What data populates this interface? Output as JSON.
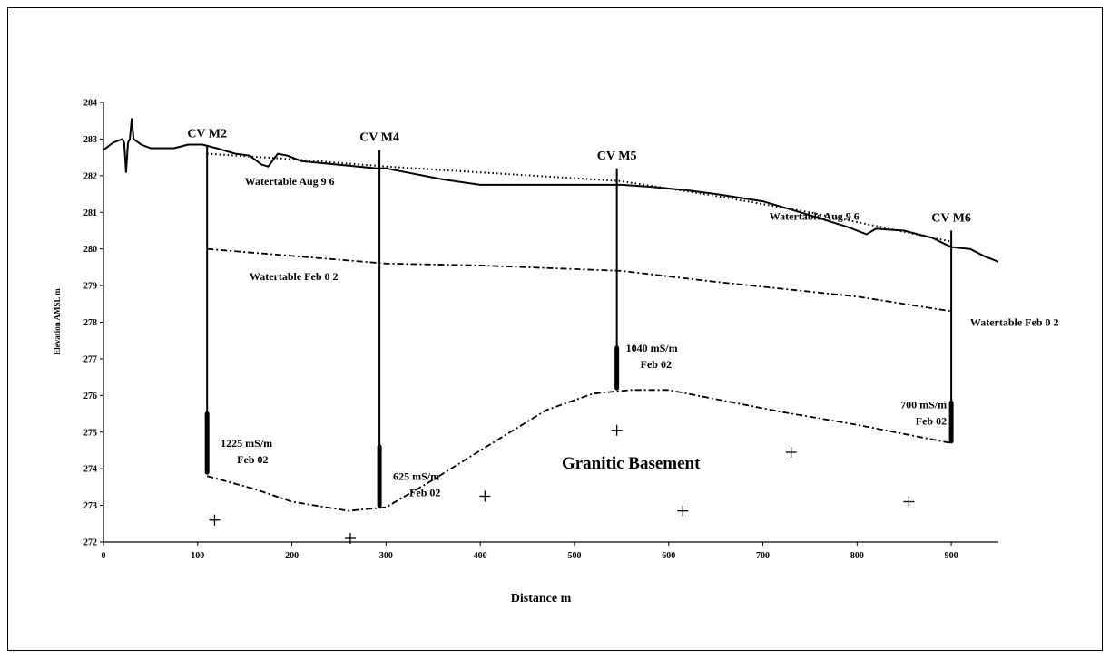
{
  "chart_data": {
    "type": "line",
    "title": "",
    "xlabel": "Distance m",
    "ylabel": "Elevation AMSL m",
    "xlim": [
      0,
      950
    ],
    "ylim": [
      272,
      284
    ],
    "x_ticks": [
      "0",
      "100",
      "200",
      "300",
      "400",
      "500",
      "600",
      "700",
      "800",
      "900"
    ],
    "y_ticks": [
      "272",
      "273",
      "274",
      "275",
      "276",
      "277",
      "278",
      "279",
      "280",
      "281",
      "282",
      "283",
      "284"
    ],
    "series": [
      {
        "name": "",
        "style": "solid",
        "points": [
          [
            0,
            282.7
          ],
          [
            10,
            282.9
          ],
          [
            20,
            283.0
          ],
          [
            22,
            282.9
          ],
          [
            24,
            282.1
          ],
          [
            26,
            282.9
          ],
          [
            28,
            283.0
          ],
          [
            30,
            283.55
          ],
          [
            32,
            283.0
          ],
          [
            40,
            282.85
          ],
          [
            50,
            282.75
          ],
          [
            75,
            282.75
          ],
          [
            90,
            282.85
          ],
          [
            105,
            282.85
          ],
          [
            120,
            282.75
          ],
          [
            140,
            282.6
          ],
          [
            155,
            282.55
          ],
          [
            168,
            282.3
          ],
          [
            175,
            282.25
          ],
          [
            185,
            282.6
          ],
          [
            195,
            282.55
          ],
          [
            210,
            282.4
          ],
          [
            250,
            282.3
          ],
          [
            290,
            282.2
          ],
          [
            300,
            282.2
          ],
          [
            320,
            282.1
          ],
          [
            360,
            281.9
          ],
          [
            400,
            281.75
          ],
          [
            550,
            281.75
          ],
          [
            580,
            281.7
          ],
          [
            620,
            281.6
          ],
          [
            650,
            281.5
          ],
          [
            700,
            281.3
          ],
          [
            740,
            281.0
          ],
          [
            790,
            280.6
          ],
          [
            810,
            280.4
          ],
          [
            820,
            280.55
          ],
          [
            850,
            280.5
          ],
          [
            880,
            280.3
          ],
          [
            900,
            280.05
          ],
          [
            920,
            280.0
          ],
          [
            935,
            279.8
          ],
          [
            950,
            279.65
          ]
        ]
      },
      {
        "name": "Watertable Aug 9 6",
        "style": "dotted",
        "points": [
          [
            110,
            282.6
          ],
          [
            200,
            282.45
          ],
          [
            300,
            282.25
          ],
          [
            550,
            281.85
          ],
          [
            650,
            281.45
          ],
          [
            750,
            281.0
          ],
          [
            900,
            280.2
          ]
        ]
      },
      {
        "name": "Watertable Feb 0 2",
        "style": "dash-dot",
        "points": [
          [
            110,
            280.0
          ],
          [
            300,
            279.6
          ],
          [
            400,
            279.55
          ],
          [
            550,
            279.4
          ],
          [
            650,
            279.1
          ],
          [
            800,
            278.7
          ],
          [
            900,
            278.3
          ]
        ]
      },
      {
        "name": "",
        "style": "dash-dot",
        "points": [
          [
            110,
            273.8
          ],
          [
            160,
            273.45
          ],
          [
            200,
            273.1
          ],
          [
            260,
            272.85
          ],
          [
            300,
            272.95
          ],
          [
            350,
            273.7
          ],
          [
            400,
            274.5
          ],
          [
            470,
            275.6
          ],
          [
            520,
            276.05
          ],
          [
            560,
            276.15
          ],
          [
            600,
            276.15
          ],
          [
            650,
            275.9
          ],
          [
            720,
            275.55
          ],
          [
            800,
            275.2
          ],
          [
            900,
            274.7
          ]
        ]
      }
    ],
    "boreholes": [
      {
        "name": "CV M2",
        "x": 110,
        "top": 282.8,
        "bottom": 273.9,
        "screen_top": 275.5,
        "screen_bottom": 273.9,
        "value": "1225 mS/m",
        "date": "Feb 02"
      },
      {
        "name": "CV M4",
        "x": 293,
        "top": 282.7,
        "bottom": 273.0,
        "screen_top": 274.6,
        "screen_bottom": 273.0,
        "value": "625 mS/m",
        "date": "Feb 02"
      },
      {
        "name": "CV M5",
        "x": 545,
        "top": 282.2,
        "bottom": 276.2,
        "screen_top": 277.3,
        "screen_bottom": 276.2,
        "value": "1040 mS/m",
        "date": "Feb 02"
      },
      {
        "name": "CV M6",
        "x": 900,
        "top": 280.5,
        "bottom": 274.75,
        "screen_top": 275.8,
        "screen_bottom": 274.75,
        "value": "700 mS/m",
        "date": "Feb 02"
      }
    ],
    "annotations": [
      {
        "text": "Watertable Aug 9 6",
        "x": 150,
        "y": 281.75
      },
      {
        "text": "Watertable Aug 9 6",
        "x": 707,
        "y": 280.8
      },
      {
        "text": "Watertable Feb 0 2",
        "x": 155,
        "y": 279.15
      },
      {
        "text": "Watertable Feb 0 2",
        "x": 920,
        "y": 277.9
      },
      {
        "text": "Granitic Basement",
        "x": 560,
        "y": 274.0
      }
    ],
    "crosses": [
      [
        118,
        272.6
      ],
      [
        262,
        272.1
      ],
      [
        405,
        273.25
      ],
      [
        545,
        275.05
      ],
      [
        615,
        272.85
      ],
      [
        730,
        274.45
      ],
      [
        855,
        273.1
      ]
    ]
  }
}
